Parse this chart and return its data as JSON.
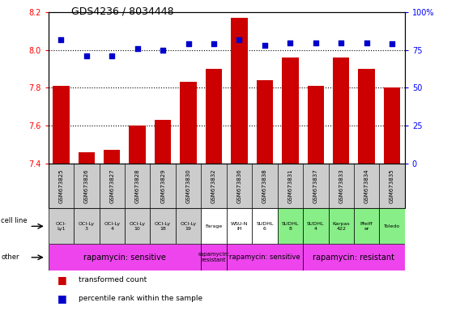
{
  "title": "GDS4236 / 8034448",
  "samples": [
    "GSM673825",
    "GSM673826",
    "GSM673827",
    "GSM673828",
    "GSM673829",
    "GSM673830",
    "GSM673832",
    "GSM673836",
    "GSM673838",
    "GSM673831",
    "GSM673837",
    "GSM673833",
    "GSM673834",
    "GSM673835"
  ],
  "transformed_count": [
    7.81,
    7.46,
    7.47,
    7.6,
    7.63,
    7.83,
    7.9,
    8.17,
    7.84,
    7.96,
    7.81,
    7.96,
    7.9,
    7.8
  ],
  "percentile_rank": [
    82,
    71,
    71,
    76,
    75,
    79,
    79,
    82,
    78,
    80,
    80,
    80,
    80,
    79
  ],
  "ylim_left": [
    7.4,
    8.2
  ],
  "ylim_right": [
    0,
    100
  ],
  "yticks_left": [
    7.4,
    7.6,
    7.8,
    8.0,
    8.2
  ],
  "yticks_right": [
    0,
    25,
    50,
    75,
    100
  ],
  "bar_color": "#cc0000",
  "dot_color": "#0000cc",
  "cell_line_labels": [
    "OCI-\nLy1",
    "OCI-Ly\n3",
    "OCI-Ly\n4",
    "OCI-Ly\n10",
    "OCI-Ly\n18",
    "OCI-Ly\n19",
    "Farage",
    "WSU-N\nIH",
    "SUDHL\n6",
    "SUDHL\n8",
    "SUDHL\n4",
    "Karpas\n422",
    "Pfeiff\ner",
    "Toledo"
  ],
  "cell_line_colors": [
    "#cccccc",
    "#cccccc",
    "#cccccc",
    "#cccccc",
    "#cccccc",
    "#cccccc",
    "#ffffff",
    "#ffffff",
    "#ffffff",
    "#88ee88",
    "#88ee88",
    "#88ee88",
    "#88ee88",
    "#88ee88"
  ],
  "other_groups": [
    {
      "start": 0,
      "end": 6,
      "color": "#ee44ee",
      "label": "rapamycin: sensitive",
      "fontsize": 7
    },
    {
      "start": 6,
      "end": 7,
      "color": "#ee44ee",
      "label": "rapamycin:\nresistant",
      "fontsize": 5
    },
    {
      "start": 7,
      "end": 10,
      "color": "#ee44ee",
      "label": "rapamycin: sensitive",
      "fontsize": 6
    },
    {
      "start": 10,
      "end": 14,
      "color": "#ee44ee",
      "label": "rapamycin: resistant",
      "fontsize": 7
    }
  ],
  "row_label_cell_line": "cell line",
  "row_label_other": "other",
  "legend_red": "transformed count",
  "legend_blue": "percentile rank within the sample",
  "dotted_grid_values": [
    7.6,
    7.8,
    8.0
  ],
  "bar_width": 0.65,
  "bar_bottom": 7.4
}
